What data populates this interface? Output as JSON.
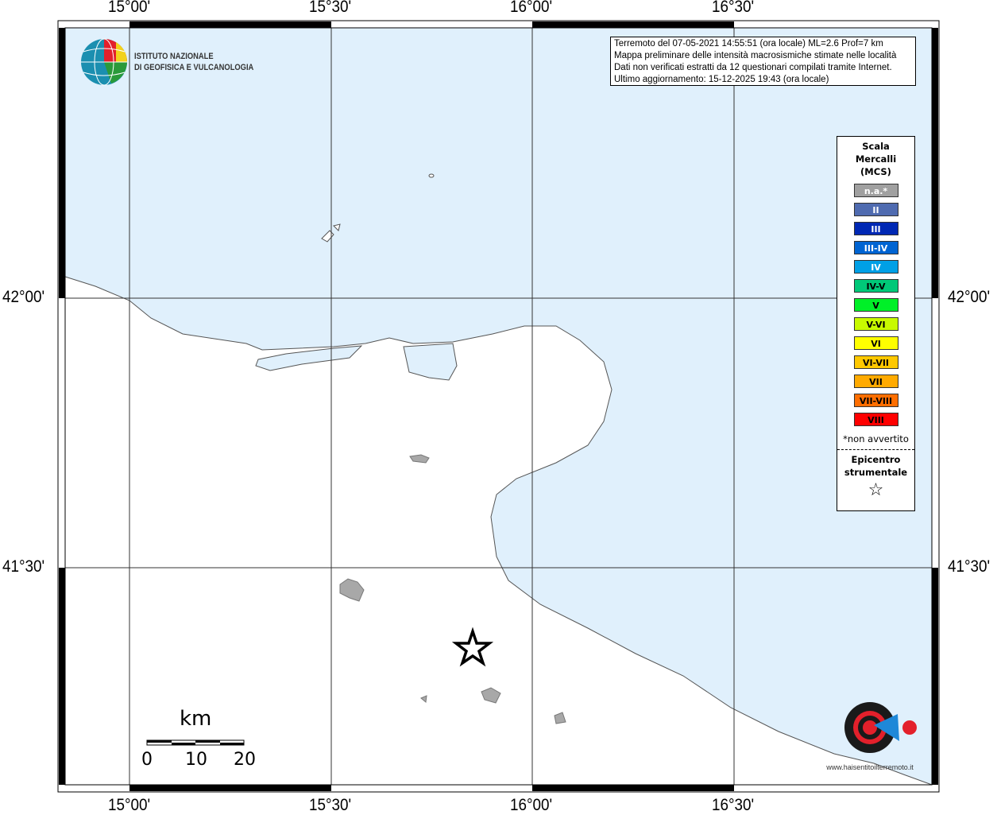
{
  "lon_ticks": [
    "15°00'",
    "15°30'",
    "16°00'",
    "16°30'"
  ],
  "lat_ticks": [
    "42°00'",
    "41°30'"
  ],
  "info": {
    "line1": "Terremoto del 07-05-2021 14:55:51 (ora locale) ML=2.6 Prof=7 km",
    "line2": "Mappa preliminare delle intensità macrosismiche stimate nelle località",
    "line3": "Dati non verificati estratti da 12 questionari compilati tramite Internet.",
    "line4": "Ultimo aggiornamento: 15-12-2025 19:43 (ora locale)"
  },
  "logo": {
    "line1": "ISTITUTO NAZIONALE",
    "line2": "DI GEOFISICA E VULCANOLOGIA",
    "hsit": "www.haisentitoilterremoto.it"
  },
  "legend": {
    "title": [
      "Scala",
      "Mercalli",
      "(MCS)"
    ],
    "items": [
      {
        "label": "n.a.*",
        "color": "#a0a0a0",
        "text": "#ffffff"
      },
      {
        "label": "II",
        "color": "#4f6bb0",
        "text": "#ffffff"
      },
      {
        "label": "III",
        "color": "#0028b4",
        "text": "#ffffff"
      },
      {
        "label": "III-IV",
        "color": "#0064d2",
        "text": "#ffffff"
      },
      {
        "label": "IV",
        "color": "#00a0e6",
        "text": "#ffffff"
      },
      {
        "label": "IV-V",
        "color": "#00c878",
        "text": "#000000"
      },
      {
        "label": "V",
        "color": "#00f028",
        "text": "#000000"
      },
      {
        "label": "V-VI",
        "color": "#c8fa00",
        "text": "#000000"
      },
      {
        "label": "VI",
        "color": "#ffff00",
        "text": "#000000"
      },
      {
        "label": "VI-VII",
        "color": "#ffc800",
        "text": "#000000"
      },
      {
        "label": "VII",
        "color": "#ffaa00",
        "text": "#000000"
      },
      {
        "label": "VII-VIII",
        "color": "#ff6e00",
        "text": "#000000"
      },
      {
        "label": "VIII",
        "color": "#ff0000",
        "text": "#000000"
      }
    ],
    "note": "*non avvertito",
    "epicenter": [
      "Epicentro",
      "strumentale"
    ]
  },
  "scale_bar": {
    "unit": "km",
    "labels": [
      "0",
      "10",
      "20"
    ]
  },
  "colors": {
    "sea": "#e0f0fc",
    "land": "#ffffff",
    "urban": "#a8a8a8"
  }
}
